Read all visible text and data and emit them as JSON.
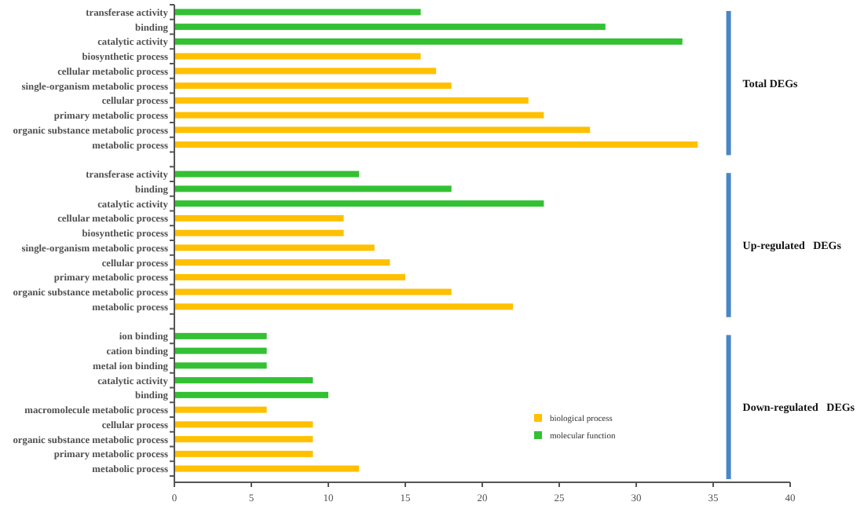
{
  "chart_data": {
    "type": "bar",
    "orientation": "horizontal",
    "categories": [
      "transferase activity",
      "binding",
      "catalytic activity",
      "biosynthetic process",
      "cellular metabolic process",
      "single-organism metabolic process",
      "cellular process",
      "primary metabolic process",
      "organic substance metabolic process",
      "metabolic process",
      null,
      "transferase activity",
      "binding",
      "catalytic activity",
      "cellular metabolic process",
      "biosynthetic process",
      "single-organism metabolic process",
      "cellular process",
      "primary metabolic process",
      "organic substance metabolic process",
      "metabolic process",
      null,
      "ion binding",
      "cation binding",
      "metal ion binding",
      "catalytic activity",
      "binding",
      "macromolecule metabolic process",
      "cellular process",
      "organic substance metabolic process",
      "primary metabolic process",
      "metabolic process"
    ],
    "series": [
      {
        "name": "biological process",
        "color": "#ffc000",
        "values": [
          null,
          null,
          null,
          16,
          17,
          18,
          23,
          24,
          27,
          34,
          null,
          null,
          null,
          null,
          11,
          11,
          13,
          14,
          15,
          18,
          22,
          null,
          null,
          null,
          null,
          null,
          null,
          6,
          9,
          9,
          9,
          12
        ]
      },
      {
        "name": "molecular function",
        "color": "#33c133",
        "values": [
          16,
          28,
          33,
          null,
          null,
          null,
          null,
          null,
          null,
          null,
          null,
          12,
          18,
          24,
          null,
          null,
          null,
          null,
          null,
          null,
          null,
          null,
          6,
          6,
          6,
          9,
          10,
          null,
          null,
          null,
          null,
          null
        ]
      }
    ],
    "xlim": [
      0,
      40
    ],
    "xticks": [
      0,
      5,
      10,
      15,
      20,
      25,
      30,
      35,
      40
    ],
    "legend": "bottom right",
    "annotations": [
      "Total DEGs",
      "Up-regulated   DEGs",
      "Down-regulated   DEGs"
    ]
  }
}
